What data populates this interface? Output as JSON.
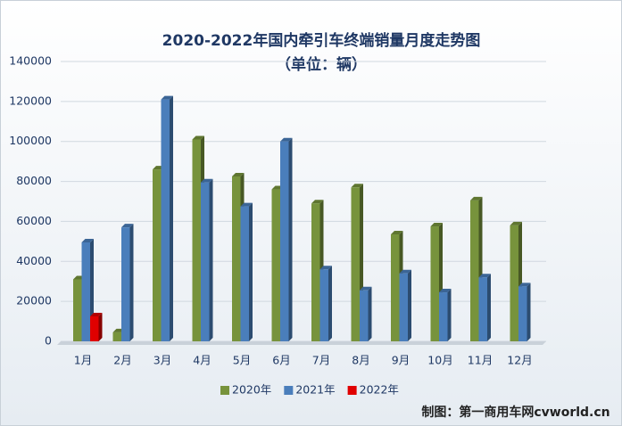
{
  "chart_data": {
    "type": "bar",
    "title": "2020-2022年国内牵引车终端销量月度走势图",
    "subtitle": "（单位：辆）",
    "categories": [
      "1月",
      "2月",
      "3月",
      "4月",
      "5月",
      "6月",
      "7月",
      "8月",
      "9月",
      "10月",
      "11月",
      "12月"
    ],
    "series": [
      {
        "name": "2020年",
        "color": "#77933c",
        "values": [
          31000,
          4500,
          86000,
          101000,
          82500,
          76000,
          69000,
          77000,
          53500,
          57500,
          70500,
          58000
        ]
      },
      {
        "name": "2021年",
        "color": "#4a7ebb",
        "values": [
          49500,
          57000,
          121000,
          79500,
          67500,
          100000,
          36000,
          25500,
          34000,
          24500,
          32000,
          27500
        ]
      },
      {
        "name": "2022年",
        "color": "#e00000",
        "values": [
          12500,
          null,
          null,
          null,
          null,
          null,
          null,
          null,
          null,
          null,
          null,
          null
        ]
      }
    ],
    "ylim": [
      0,
      140000
    ],
    "yticks": [
      0,
      20000,
      40000,
      60000,
      80000,
      100000,
      120000,
      140000
    ],
    "grid": true,
    "legend": "bottom",
    "watermark": "制图：第一商用车网cvworld.cn"
  }
}
